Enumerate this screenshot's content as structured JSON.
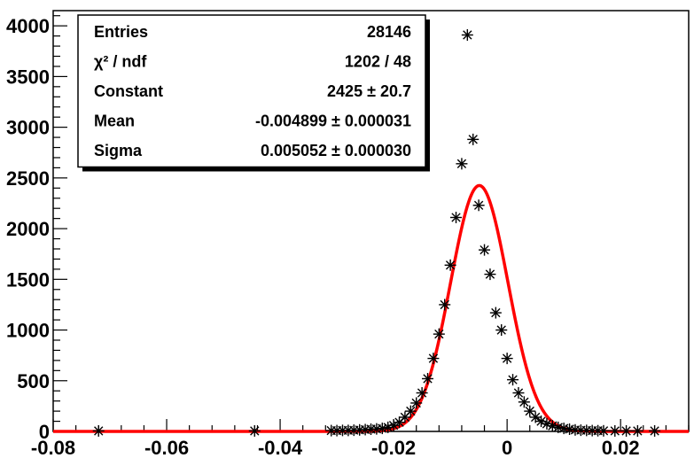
{
  "chart_data": {
    "type": "scatter",
    "title": "",
    "xlabel": "",
    "ylabel": "",
    "xlim": [
      -0.08,
      0.032
    ],
    "ylim": [
      0,
      4150
    ],
    "x_ticks": [
      {
        "value": -0.08,
        "label": "-0.08"
      },
      {
        "value": -0.06,
        "label": "-0.06"
      },
      {
        "value": -0.04,
        "label": "-0.04"
      },
      {
        "value": -0.02,
        "label": "-0.02"
      },
      {
        "value": 0,
        "label": "0"
      },
      {
        "value": 0.02,
        "label": "0.02"
      }
    ],
    "y_ticks": [
      {
        "value": 0,
        "label": "0"
      },
      {
        "value": 500,
        "label": "500"
      },
      {
        "value": 1000,
        "label": "1000"
      },
      {
        "value": 1500,
        "label": "1500"
      },
      {
        "value": 2000,
        "label": "2000"
      },
      {
        "value": 2500,
        "label": "2500"
      },
      {
        "value": 3000,
        "label": "3000"
      },
      {
        "value": 3500,
        "label": "3500"
      },
      {
        "value": 4000,
        "label": "4000"
      }
    ],
    "grid": false,
    "series": [
      {
        "marker": "asterisk",
        "color": "#000000",
        "x": [
          -0.072,
          -0.0445,
          -0.031,
          -0.03,
          -0.029,
          -0.028,
          -0.027,
          -0.026,
          -0.025,
          -0.024,
          -0.023,
          -0.022,
          -0.021,
          -0.02,
          -0.019,
          -0.018,
          -0.017,
          -0.016,
          -0.015,
          -0.014,
          -0.013,
          -0.012,
          -0.011,
          -0.01,
          -0.009,
          -0.008,
          -0.007,
          -0.006,
          -0.005,
          -0.004,
          -0.003,
          -0.002,
          -0.001,
          0.0,
          0.001,
          0.002,
          0.003,
          0.004,
          0.005,
          0.006,
          0.007,
          0.008,
          0.009,
          0.01,
          0.011,
          0.012,
          0.013,
          0.014,
          0.015,
          0.016,
          0.017,
          0.019,
          0.021,
          0.023,
          0.026
        ],
        "y": [
          5,
          5,
          8,
          8,
          10,
          10,
          12,
          15,
          18,
          22,
          25,
          30,
          40,
          60,
          90,
          140,
          200,
          280,
          380,
          520,
          720,
          960,
          1250,
          1640,
          2110,
          2640,
          3910,
          2880,
          2230,
          1790,
          1550,
          1170,
          1000,
          720,
          510,
          380,
          290,
          200,
          140,
          100,
          75,
          55,
          40,
          30,
          22,
          15,
          12,
          10,
          8,
          7,
          6,
          5,
          5,
          5,
          5
        ]
      },
      {
        "type": "line",
        "color": "#ff0000",
        "function": "gaussian",
        "constant": 2425,
        "mean": -0.004899,
        "sigma": 0.005052
      }
    ],
    "stats_box": {
      "rows": [
        {
          "label": "Entries",
          "value": "28146"
        },
        {
          "label": "χ² / ndf",
          "value": "1202 / 48"
        },
        {
          "label": "Constant",
          "value": "2425 ± 20.7"
        },
        {
          "label": "Mean",
          "value": "-0.004899 ± 0.000031"
        },
        {
          "label": "Sigma",
          "value": "0.005052 ± 0.000030"
        }
      ]
    }
  }
}
